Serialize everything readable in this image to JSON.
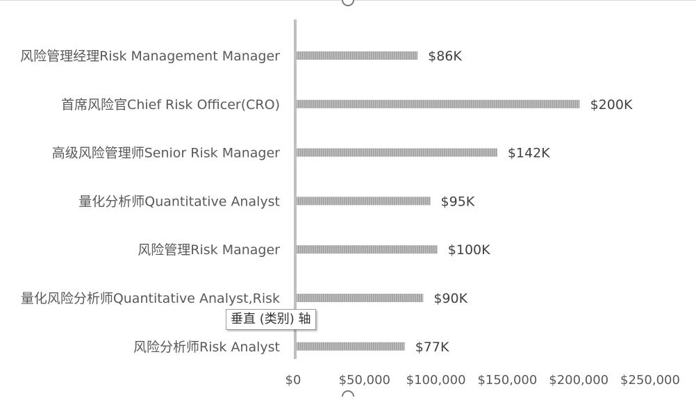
{
  "chart_data": {
    "type": "bar",
    "orientation": "horizontal",
    "categories": [
      "风险管理经理Risk Management Manager",
      "首席风险官Chief Risk Officer(CRO)",
      "高级风险管理师Senior Risk Manager",
      "量化分析师Quantitative Analyst",
      "风险管理Risk Manager",
      "量化风险分析师Quantitative Analyst,Risk",
      "风险分析师Risk Analyst"
    ],
    "values": [
      86000,
      200000,
      142000,
      95000,
      100000,
      90000,
      77000
    ],
    "data_labels": [
      "$86K",
      "$200K",
      "$142K",
      "$95K",
      "$100K",
      "$90K",
      "$77K"
    ],
    "x_ticks": [
      0,
      50000,
      100000,
      150000,
      200000,
      250000
    ],
    "x_tick_labels": [
      "$0",
      "$50,000",
      "$100,000",
      "$150,000",
      "$200,000",
      "$250,000"
    ],
    "xlim": [
      0,
      250000
    ],
    "grid": false,
    "bar_color": "#a6a6a6",
    "axis_color": "#bfbfbf"
  },
  "tooltip": {
    "text": "垂直 (类别) 轴"
  }
}
